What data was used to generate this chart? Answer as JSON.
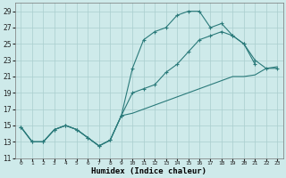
{
  "xlabel": "Humidex (Indice chaleur)",
  "ylabel": "",
  "xlim": [
    -0.5,
    23.5
  ],
  "ylim": [
    11,
    30
  ],
  "yticks": [
    11,
    13,
    15,
    17,
    19,
    21,
    23,
    25,
    27,
    29
  ],
  "xticks": [
    0,
    1,
    2,
    3,
    4,
    5,
    6,
    7,
    8,
    9,
    10,
    11,
    12,
    13,
    14,
    15,
    16,
    17,
    18,
    19,
    20,
    21,
    22,
    23
  ],
  "background_color": "#ceeaea",
  "grid_color": "#aacece",
  "line_color": "#2a7a7a",
  "line1_x": [
    0,
    1,
    2,
    3,
    4,
    5,
    6,
    7,
    8,
    9,
    10,
    11,
    12,
    13,
    14,
    15,
    16,
    17,
    18,
    19,
    20,
    21
  ],
  "line1_y": [
    14.8,
    13.0,
    13.0,
    14.5,
    15.0,
    14.5,
    13.5,
    12.5,
    13.2,
    16.2,
    22.0,
    25.5,
    26.5,
    27.0,
    28.5,
    29.0,
    29.0,
    27.0,
    27.5,
    26.0,
    25.0,
    22.5
  ],
  "line2_x": [
    0,
    1,
    2,
    3,
    4,
    5,
    6,
    7,
    8,
    9,
    10,
    11,
    12,
    13,
    14,
    15,
    16,
    17,
    18,
    19,
    20,
    21,
    22,
    23
  ],
  "line2_y": [
    14.8,
    13.0,
    13.0,
    14.5,
    15.0,
    14.5,
    13.5,
    12.5,
    13.2,
    16.2,
    19.0,
    19.5,
    20.0,
    21.5,
    22.5,
    24.0,
    25.5,
    26.0,
    26.5,
    26.0,
    25.0,
    23.0,
    22.0,
    22.0
  ],
  "line3_x": [
    0,
    1,
    2,
    3,
    4,
    5,
    6,
    7,
    8,
    9,
    10,
    11,
    12,
    13,
    14,
    15,
    16,
    17,
    18,
    19,
    20,
    21,
    22,
    23
  ],
  "line3_y": [
    14.8,
    13.0,
    13.0,
    14.5,
    15.0,
    14.5,
    13.5,
    12.5,
    13.2,
    16.2,
    16.5,
    17.0,
    17.5,
    18.0,
    18.5,
    19.0,
    19.5,
    20.0,
    20.5,
    21.0,
    21.0,
    21.2,
    22.0,
    22.2
  ]
}
